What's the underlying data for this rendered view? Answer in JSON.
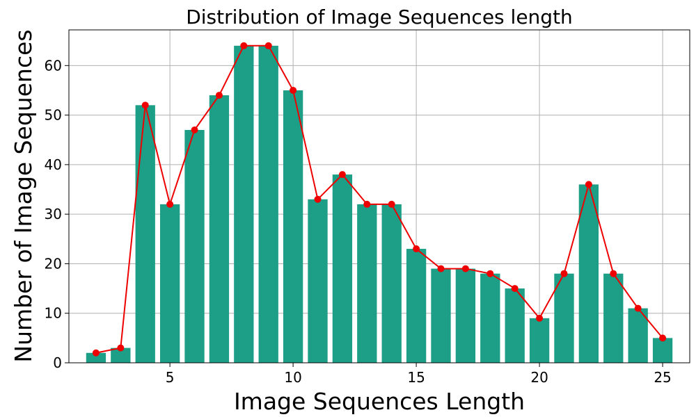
{
  "chart_data": {
    "type": "bar",
    "title": "Distribution of Image Sequences length",
    "xlabel": "Image Sequences Length",
    "ylabel": "Number of Image Sequences",
    "x": [
      2,
      3,
      4,
      5,
      6,
      7,
      8,
      9,
      10,
      11,
      12,
      13,
      14,
      15,
      16,
      17,
      18,
      19,
      20,
      21,
      22,
      23,
      24,
      25
    ],
    "values": [
      2,
      3,
      52,
      32,
      47,
      54,
      64,
      64,
      55,
      33,
      38,
      32,
      32,
      23,
      19,
      19,
      18,
      15,
      9,
      18,
      36,
      18,
      11,
      5
    ],
    "overlay_line": {
      "type": "line",
      "marker": "circle",
      "color": "#ee0000"
    },
    "bar_color": "#1c9f86",
    "xlim": [
      0.9,
      26.1
    ],
    "ylim": [
      0,
      67.2
    ],
    "xticks": [
      5,
      10,
      15,
      20,
      25
    ],
    "yticks": [
      0,
      10,
      20,
      30,
      40,
      50,
      60
    ],
    "xtick_labels": [
      "5",
      "10",
      "15",
      "20",
      "25"
    ],
    "ytick_labels": [
      "0",
      "10",
      "20",
      "30",
      "40",
      "50",
      "60"
    ],
    "grid": true,
    "legend": "none"
  }
}
